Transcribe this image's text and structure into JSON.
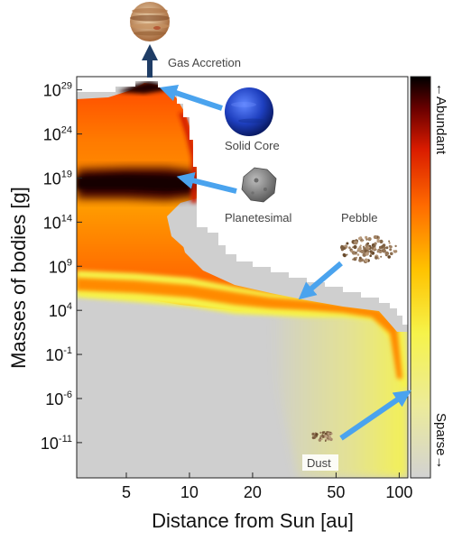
{
  "chart_data": {
    "type": "heatmap",
    "xlabel": "Distance from Sun [au]",
    "ylabel": "Masses of bodies  [g]",
    "x_scale": "log",
    "y_scale": "log",
    "xlim": [
      2.9,
      110
    ],
    "ylim_log10": [
      -15,
      30.5
    ],
    "x_ticks": [
      {
        "value": 5,
        "label": "5"
      },
      {
        "value": 10,
        "label": "10"
      },
      {
        "value": 20,
        "label": "20"
      },
      {
        "value": 50,
        "label": "50"
      },
      {
        "value": 100,
        "label": "100"
      }
    ],
    "y_ticks": [
      {
        "exp": 29,
        "base": "10",
        "sup": "29"
      },
      {
        "exp": 24,
        "base": "10",
        "sup": "24"
      },
      {
        "exp": 19,
        "base": "10",
        "sup": "19"
      },
      {
        "exp": 14,
        "base": "10",
        "sup": "14"
      },
      {
        "exp": 9,
        "base": "10",
        "sup": "9"
      },
      {
        "exp": 4,
        "base": "10",
        "sup": "4"
      },
      {
        "exp": -1,
        "base": "10",
        "sup": "-1"
      },
      {
        "exp": -6,
        "base": "10",
        "sup": "-6"
      },
      {
        "exp": -11,
        "base": "10",
        "sup": "-11"
      }
    ],
    "colorbar": {
      "top_label": "←Abundant",
      "bottom_label": "Sparse→",
      "colors": [
        "#d0d0d0",
        "#f5f542",
        "#ffc000",
        "#ff6a00",
        "#e02000",
        "#700000",
        "#000000"
      ]
    },
    "annotations": [
      {
        "label": "Gas Accretion",
        "x": 7.0,
        "log_mass": 29.8,
        "icon": "jupiter-icon"
      },
      {
        "label": "Solid Core",
        "x": 7.0,
        "log_mass": 29.0,
        "icon": "neptune-icon"
      },
      {
        "label": "Planetesimal",
        "x": 6.2,
        "log_mass": 19.0,
        "icon": "asteroid-icon"
      },
      {
        "label": "Pebble",
        "x": 31.0,
        "log_mass": 5.5,
        "icon": "pebble-aggregate-icon"
      },
      {
        "label": "Dust",
        "x": 105.0,
        "log_mass": -5.0,
        "icon": "dust-aggregate-icon"
      }
    ],
    "regions": {
      "grey_upper_boundary_log_mass": [
        [
          12.0,
          14.0
        ],
        [
          15.0,
          11.0
        ],
        [
          20.0,
          10.2
        ],
        [
          30.0,
          9.0
        ],
        [
          50.0,
          7.5
        ],
        [
          80.0,
          6.3
        ],
        [
          105.0,
          5.5
        ]
      ],
      "pebble_band_log_mass": [
        [
          3.0,
          7.0
        ],
        [
          10.0,
          6.3
        ],
        [
          20.0,
          5.5
        ],
        [
          30.0,
          4.5
        ],
        [
          50.0,
          4.0
        ],
        [
          80.0,
          3.0
        ],
        [
          100.0,
          1.0
        ],
        [
          105.0,
          -4.0
        ]
      ],
      "planetesimal_peak_log_mass": 19.0,
      "planetesimal_region_x": [
        2.9,
        12.0
      ],
      "solid_core_peak": {
        "x": 7.0,
        "log_mass": 29.0
      }
    }
  }
}
